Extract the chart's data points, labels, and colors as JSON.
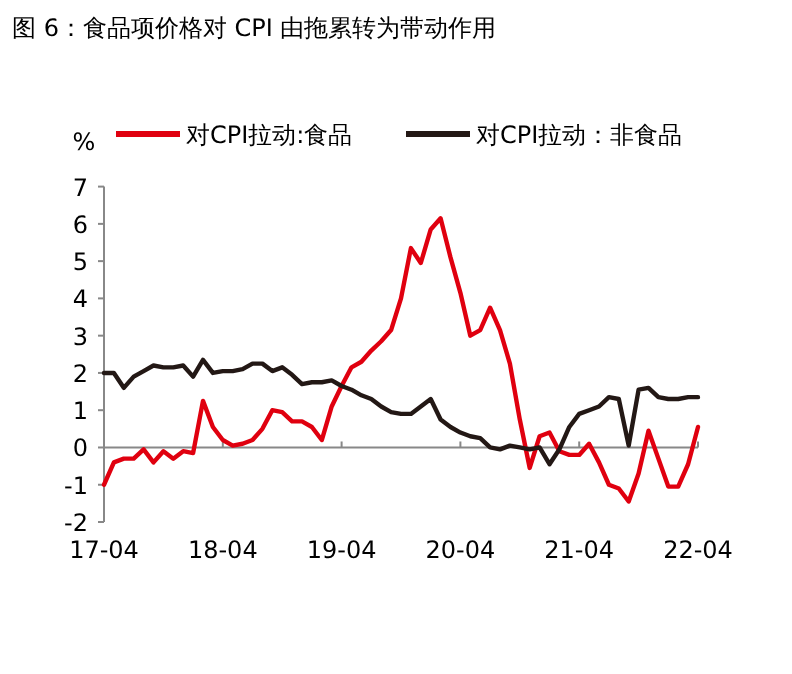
{
  "chart_data": {
    "type": "line",
    "title": "图 6：食品项价格对 CPI 由拖累转为带动作用",
    "ylabel": "%",
    "categories": [
      "17-04",
      null,
      null,
      null,
      null,
      null,
      null,
      null,
      null,
      null,
      null,
      null,
      "18-04",
      null,
      null,
      null,
      null,
      null,
      null,
      null,
      null,
      null,
      null,
      null,
      "19-04",
      null,
      null,
      null,
      null,
      null,
      null,
      null,
      null,
      null,
      null,
      null,
      "20-04",
      null,
      null,
      null,
      null,
      null,
      null,
      null,
      null,
      null,
      null,
      null,
      "21-04",
      null,
      null,
      null,
      null,
      null,
      null,
      null,
      null,
      null,
      null,
      null,
      "22-04"
    ],
    "series": [
      {
        "name": "对CPI拉动:食品",
        "color": "#e0000f",
        "values": [
          -1.0,
          -0.4,
          -0.3,
          -0.3,
          -0.05,
          -0.4,
          -0.1,
          -0.3,
          -0.1,
          -0.15,
          1.25,
          0.55,
          0.2,
          0.05,
          0.1,
          0.2,
          0.5,
          1.0,
          0.95,
          0.7,
          0.7,
          0.55,
          0.2,
          1.1,
          1.65,
          2.15,
          2.3,
          2.6,
          2.85,
          3.15,
          4.0,
          5.35,
          4.95,
          5.85,
          6.15,
          5.1,
          4.15,
          3.0,
          3.15,
          3.75,
          3.15,
          2.25,
          0.75,
          -0.55,
          0.3,
          0.4,
          -0.1,
          -0.2,
          -0.2,
          0.1,
          -0.4,
          -1.0,
          -1.1,
          -1.45,
          -0.7,
          0.45,
          -0.3,
          -1.05,
          -1.05,
          -0.45,
          0.55
        ]
      },
      {
        "name": "对CPI拉动：非食品",
        "color": "#231815",
        "values": [
          2.0,
          2.0,
          1.6,
          1.9,
          2.05,
          2.2,
          2.15,
          2.15,
          2.2,
          1.9,
          2.35,
          2.0,
          2.05,
          2.05,
          2.1,
          2.25,
          2.25,
          2.05,
          2.15,
          1.95,
          1.7,
          1.75,
          1.75,
          1.8,
          1.65,
          1.55,
          1.4,
          1.3,
          1.1,
          0.95,
          0.9,
          0.9,
          1.1,
          1.3,
          0.75,
          0.55,
          0.4,
          0.3,
          0.25,
          0.0,
          -0.05,
          0.05,
          0.0,
          -0.05,
          0.0,
          -0.45,
          -0.05,
          0.55,
          0.9,
          1.0,
          1.1,
          1.35,
          1.3,
          0.05,
          1.55,
          1.6,
          1.35,
          1.3,
          1.3,
          1.35,
          1.35
        ]
      }
    ],
    "ylim": [
      -2,
      7
    ],
    "yticks": [
      -2,
      -1,
      0,
      1,
      2,
      3,
      4,
      5,
      6,
      7
    ],
    "legend": "top",
    "marker": "none",
    "line_style": "solid"
  }
}
